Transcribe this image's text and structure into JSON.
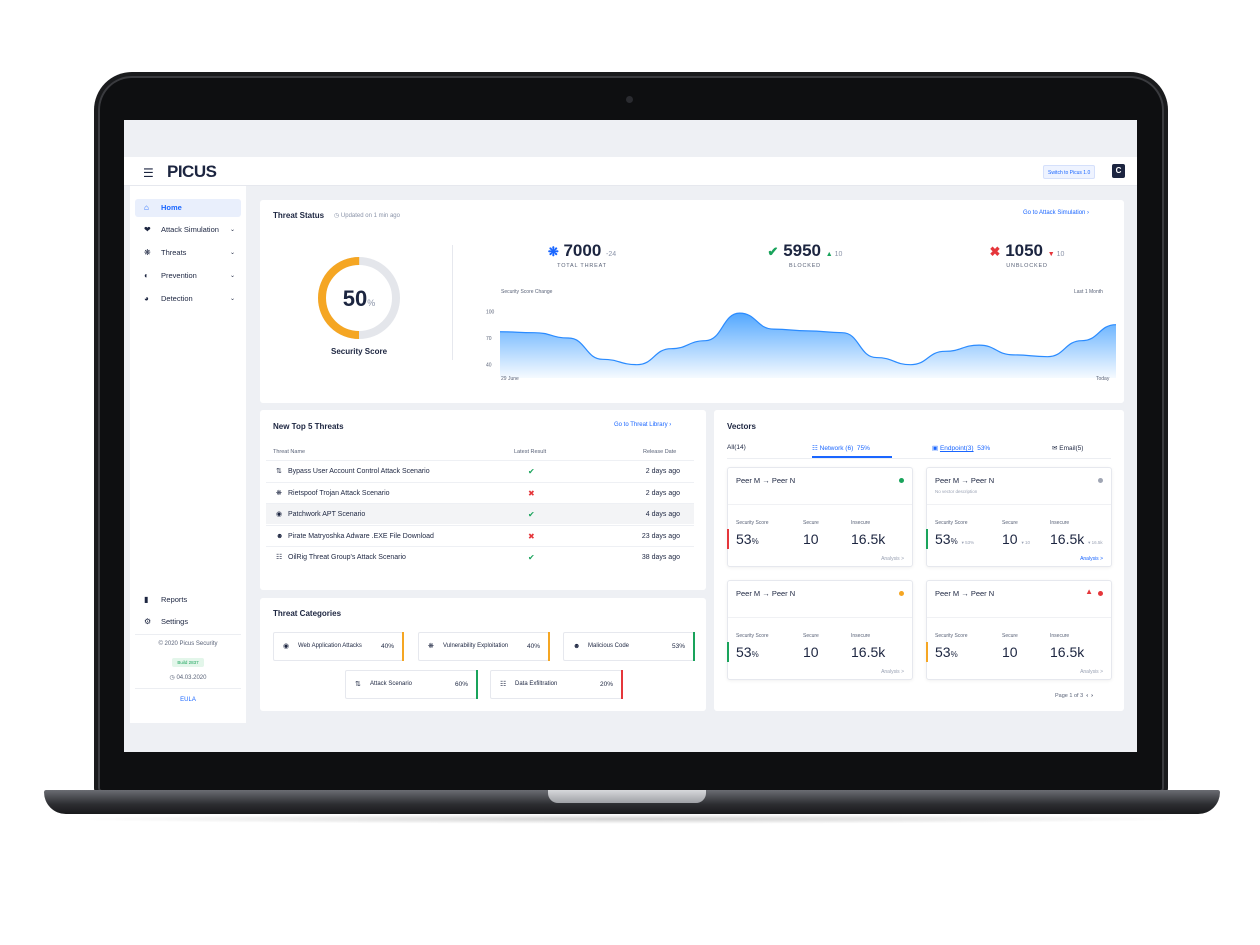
{
  "header": {
    "logo": "PICUS",
    "switch_label": "Switch to Picus 1.0",
    "user_initial": "C"
  },
  "sidebar": {
    "items": [
      {
        "label": "Home",
        "icon": "home-icon",
        "active": true
      },
      {
        "label": "Attack Simulation",
        "icon": "heart-icon",
        "expandable": true
      },
      {
        "label": "Threats",
        "icon": "bug-icon",
        "expandable": true
      },
      {
        "label": "Prevention",
        "icon": "shield-icon",
        "expandable": true
      },
      {
        "label": "Detection",
        "icon": "radar-icon",
        "expandable": true
      }
    ],
    "bottom_items": [
      {
        "label": "Reports",
        "icon": "file-icon"
      },
      {
        "label": "Settings",
        "icon": "gear-icon"
      }
    ],
    "copyright": "2020 Picus Security",
    "build": "Build 2837",
    "date": "04.03.2020",
    "eula": "EULA"
  },
  "threat_status": {
    "title": "Threat Status",
    "updated": "Updated on 1 min ago",
    "link": "Go to Attack Simulation",
    "score_value": "50",
    "score_unit": "%",
    "score_label": "Security Score",
    "score_fraction": 0.5,
    "stats": [
      {
        "value": "7000",
        "delta": "-24",
        "label": "TOTAL THREAT",
        "color": "#1a66ff",
        "icon": "bug-icon"
      },
      {
        "value": "5950",
        "delta": "10",
        "label": "BLOCKED",
        "color": "#19a35b",
        "icon": "shield-check-icon"
      },
      {
        "value": "1050",
        "delta": "10",
        "label": "UNBLOCKED",
        "color": "#e5363b",
        "icon": "shield-cross-icon"
      }
    ]
  },
  "chart_data": {
    "type": "area",
    "title": "Security Score Change",
    "range_label": "Last 1 Month",
    "x_start_label": "29 June",
    "x_end_label": "Today",
    "yticks": [
      "100",
      "70",
      "40"
    ],
    "ylim": [
      25,
      115
    ],
    "values": [
      77,
      76,
      70,
      46,
      40,
      58,
      67,
      98,
      80,
      78,
      76,
      48,
      40,
      55,
      62,
      51,
      49,
      67,
      85
    ],
    "color": "#2a8bff"
  },
  "top_threats": {
    "title": "New Top 5 Threats",
    "link": "Go to Threat Library",
    "columns": [
      "Threat Name",
      "Latest Result",
      "Release Date"
    ],
    "rows": [
      {
        "name": "Bypass User Account Control Attack Scenario",
        "icon": "arrows-icon",
        "result": "blocked",
        "date": "2 days ago"
      },
      {
        "name": "Rietspoof Trojan Attack Scenario",
        "icon": "bug-icon",
        "result": "unblocked",
        "date": "2 days ago"
      },
      {
        "name": "Patchwork APT Scenario",
        "icon": "globe-icon",
        "result": "blocked",
        "date": "4 days ago"
      },
      {
        "name": "Pirate Matryoshka Adware .EXE File Download",
        "icon": "skull-icon",
        "result": "unblocked",
        "date": "23 days ago"
      },
      {
        "name": "OilRig Threat Group's Attack Scenario",
        "icon": "network-icon",
        "result": "blocked",
        "date": "38 days ago"
      }
    ]
  },
  "threat_categories": {
    "title": "Threat Categories",
    "items": [
      {
        "name": "Web Application Attacks",
        "pct": "40%",
        "color": "#f5a623",
        "icon": "globe-icon"
      },
      {
        "name": "Vulnerability Exploitation",
        "pct": "40%",
        "color": "#f5a623",
        "icon": "bug-icon"
      },
      {
        "name": "Malicious Code",
        "pct": "53%",
        "color": "#19a35b",
        "icon": "skull-icon"
      },
      {
        "name": "Attack Scenario",
        "pct": "60%",
        "color": "#19a35b",
        "icon": "arrows-icon"
      },
      {
        "name": "Data Exfiltration",
        "pct": "20%",
        "color": "#e5363b",
        "icon": "network-icon"
      }
    ]
  },
  "vectors": {
    "title": "Vectors",
    "tabs": [
      {
        "label": "All(14)",
        "pct": ""
      },
      {
        "label": "Network (6)",
        "pct": "75%",
        "active": true,
        "icon": "network-icon"
      },
      {
        "label": "Endpoint(3)",
        "pct": "53%",
        "icon": "laptop-icon"
      },
      {
        "label": "Email(5)",
        "pct": "",
        "icon": "mail-icon"
      }
    ],
    "cards": [
      {
        "title": "Peer M → Peer N",
        "desc": "",
        "dot": "#19a35b",
        "alert": false,
        "score": "53",
        "secure": "10",
        "insecure": "16.5k",
        "score_delta": "",
        "secure_delta": "",
        "insecure_delta": "",
        "bar": "#e5363b",
        "link_blue": false
      },
      {
        "title": "Peer M → Peer N",
        "desc": "No vector description",
        "dot": "#a0a6b4",
        "alert": false,
        "score": "53",
        "secure": "10",
        "insecure": "16.5k",
        "score_delta": "53%",
        "secure_delta": "10",
        "insecure_delta": "16.5k",
        "bar": "#19a35b",
        "link_blue": true
      },
      {
        "title": "Peer M → Peer N",
        "desc": "",
        "dot": "#f5a623",
        "alert": false,
        "score": "53",
        "secure": "10",
        "insecure": "16.5k",
        "score_delta": "",
        "secure_delta": "",
        "insecure_delta": "",
        "bar": "#19a35b",
        "link_blue": false
      },
      {
        "title": "Peer M → Peer N",
        "desc": "",
        "dot": "#e5363b",
        "alert": true,
        "score": "53",
        "secure": "10",
        "insecure": "16.5k",
        "score_delta": "",
        "secure_delta": "",
        "insecure_delta": "",
        "bar": "#f5a623",
        "link_blue": false
      }
    ],
    "labels": {
      "score": "Security Score",
      "secure": "Secure",
      "insecure": "Insecure",
      "analysis": "Analysis >"
    },
    "pager": "Page 1 of 3"
  }
}
